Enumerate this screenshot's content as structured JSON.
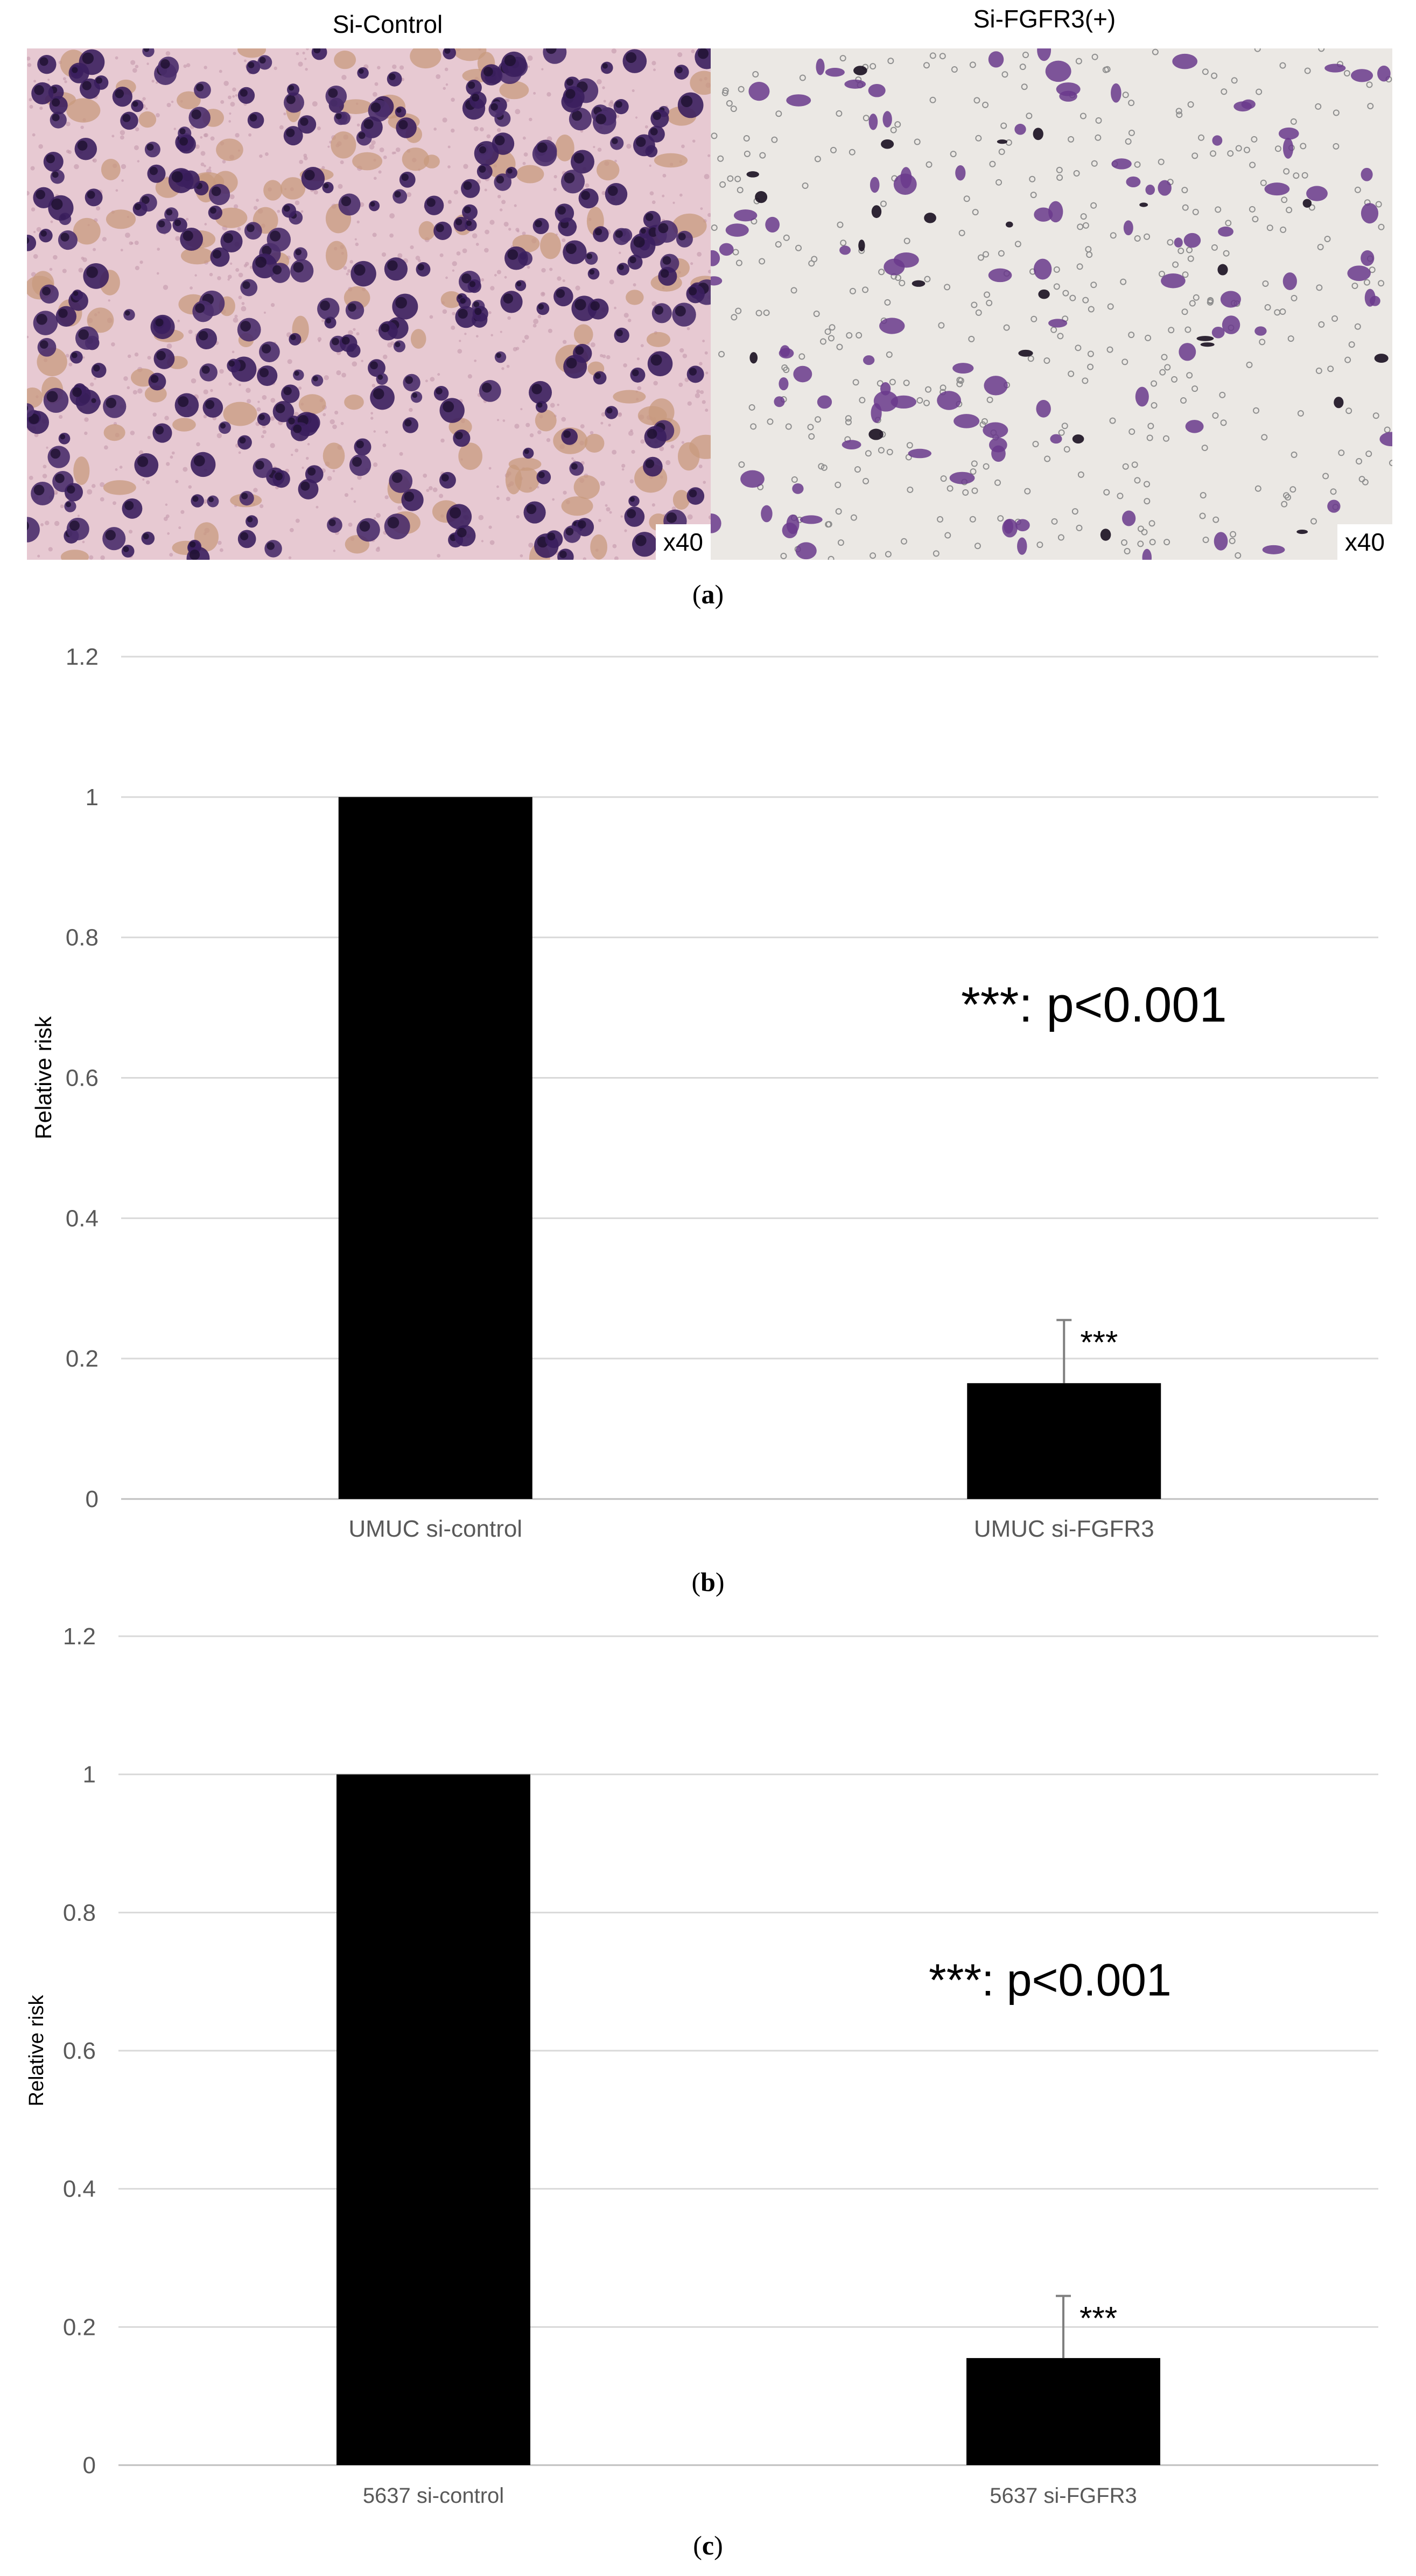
{
  "panel_a": {
    "left_title": "Si-Control",
    "right_title": "Si-FGFR3(+)",
    "left_magnification": "x40",
    "right_magnification": "x40",
    "caption_letter": "a"
  },
  "chart_data": [
    {
      "type": "bar",
      "caption_letter": "b",
      "categories": [
        "UMUC si-control",
        "UMUC si-FGFR3"
      ],
      "values": [
        1.0,
        0.165
      ],
      "error_bars": [
        0.0,
        0.09
      ],
      "significance_labels": [
        "",
        "***"
      ],
      "annotation": "***: p<0.001",
      "xlabel": "",
      "ylabel": "Relative risk",
      "ylim": [
        0,
        1.2
      ],
      "yticks": [
        0,
        0.2,
        0.4,
        0.6,
        0.8,
        1,
        1.2
      ],
      "grid": true,
      "colors": {
        "bar": "#000000",
        "grid": "#d9d9d9",
        "tick_text": "#595959"
      }
    },
    {
      "type": "bar",
      "caption_letter": "c",
      "categories": [
        "5637 si-control",
        "5637 si-FGFR3"
      ],
      "values": [
        1.0,
        0.155
      ],
      "error_bars": [
        0.0,
        0.09
      ],
      "significance_labels": [
        "",
        "***"
      ],
      "annotation": "***: p<0.001",
      "xlabel": "",
      "ylabel": "Relative risk",
      "ylim": [
        0,
        1.2
      ],
      "yticks": [
        0,
        0.2,
        0.4,
        0.6,
        0.8,
        1,
        1.2
      ],
      "grid": true,
      "colors": {
        "bar": "#000000",
        "grid": "#d9d9d9",
        "tick_text": "#595959"
      }
    }
  ]
}
